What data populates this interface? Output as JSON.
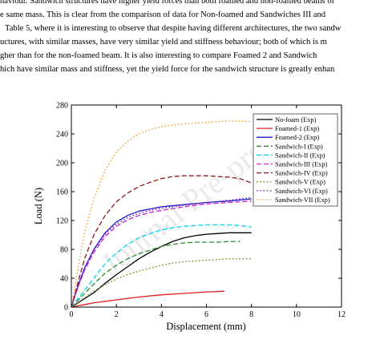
{
  "paragraph": {
    "lines": [
      "haviour. Sandwich structures have higher yield forces than both foamed and non-foamed beams of",
      "e same mass. This is clear from the comparison of data for Non-foamed and Sandwiches III and",
      "Table 5, where it is interesting to observe that despite having different architectures, the two sandw",
      "uctures, with similar masses, have very similar yield and stiffness behaviour; both of which is m",
      "gher than for the non-foamed beam. It is also interesting to compare Foamed 2 and Sandwich",
      "hich have similar mass and stiffness, yet the yield force for the sandwich structure is greatly enhan"
    ]
  },
  "watermark": "Journal Pre-proof",
  "chart_data": {
    "type": "line",
    "xlabel": "Displacement (mm)",
    "ylabel": "Load (N)",
    "xlim": [
      0,
      12
    ],
    "ylim": [
      0,
      280
    ],
    "xticks": [
      0,
      2,
      4,
      6,
      8,
      10,
      12
    ],
    "yticks": [
      0,
      40,
      80,
      120,
      160,
      200,
      240,
      280
    ],
    "grid": false,
    "legend_position": "top-right",
    "series": [
      {
        "name": "No-foam (Exp)",
        "color": "#000000",
        "style": "solid",
        "x": [
          0,
          0.5,
          1,
          1.5,
          2,
          2.5,
          3,
          3.5,
          4,
          4.5,
          5,
          5.5,
          6,
          6.5,
          7,
          7.5,
          8
        ],
        "y": [
          0,
          10,
          20,
          33,
          45,
          56,
          67,
          76,
          84,
          91,
          96,
          99,
          101,
          102,
          103,
          103,
          103
        ]
      },
      {
        "name": "Foamed-1 (Exp)",
        "color": "#e02020",
        "style": "solid",
        "x": [
          0,
          0.5,
          1,
          1.5,
          2,
          3,
          4,
          5,
          6,
          6.8
        ],
        "y": [
          0,
          3,
          6,
          8,
          10,
          14,
          17,
          19,
          21,
          22
        ]
      },
      {
        "name": "Foamed-2 (Exp)",
        "color": "#1a1acc",
        "style": "solid",
        "x": [
          0,
          0.3,
          0.6,
          1,
          1.5,
          2,
          2.5,
          3,
          3.5,
          4,
          5,
          6,
          7,
          8
        ],
        "y": [
          0,
          30,
          55,
          80,
          103,
          118,
          127,
          133,
          136,
          139,
          142,
          145,
          147,
          150
        ]
      },
      {
        "name": "Sandwich-I (Exp)",
        "color": "#2e8b2e",
        "style": "dashed",
        "x": [
          0,
          0.5,
          1,
          1.5,
          2,
          2.5,
          3,
          3.5,
          4,
          4.5,
          5,
          5.5,
          6,
          6.5,
          7,
          7.5
        ],
        "y": [
          0,
          16,
          32,
          47,
          58,
          67,
          74,
          79,
          84,
          87,
          89,
          90,
          90,
          90,
          91,
          91
        ]
      },
      {
        "name": "Sandwich-II (Exp)",
        "color": "#00d4e8",
        "style": "dashed",
        "x": [
          0,
          0.5,
          1,
          1.5,
          2,
          2.5,
          3,
          3.5,
          4,
          4.5,
          5,
          5.5,
          6,
          6.5,
          7,
          7.5,
          8
        ],
        "y": [
          0,
          20,
          40,
          60,
          75,
          87,
          96,
          102,
          107,
          110,
          112,
          113,
          114,
          114,
          114,
          113,
          111
        ]
      },
      {
        "name": "Sandwich-III (Exp)",
        "color": "#cc22cc",
        "style": "dashed",
        "x": [
          0,
          0.3,
          0.6,
          1,
          1.5,
          2,
          2.5,
          3,
          3.5,
          4,
          5,
          6,
          7,
          8
        ],
        "y": [
          0,
          28,
          52,
          76,
          98,
          112,
          121,
          127,
          131,
          134,
          139,
          143,
          145,
          147
        ]
      },
      {
        "name": "Sandwich-IV (Exp)",
        "color": "#8b1a1a",
        "style": "dashed",
        "x": [
          0,
          0.3,
          0.6,
          1,
          1.5,
          2,
          2.5,
          3,
          3.5,
          4,
          4.5,
          5,
          5.5,
          6,
          6.5,
          7,
          7.5,
          8
        ],
        "y": [
          0,
          35,
          68,
          100,
          127,
          146,
          158,
          167,
          173,
          178,
          181,
          182,
          182,
          182,
          181,
          180,
          178,
          172
        ]
      },
      {
        "name": "Sandwich-V (Exp)",
        "color": "#6b8e23",
        "style": "dotted",
        "x": [
          0,
          0.5,
          1,
          1.5,
          2,
          2.5,
          3,
          3.5,
          4,
          4.5,
          5,
          5.5,
          6,
          6.5,
          7,
          7.5,
          8
        ],
        "y": [
          0,
          11,
          22,
          31,
          39,
          45,
          50,
          54,
          58,
          61,
          63,
          64,
          65,
          66,
          67,
          67,
          67
        ]
      },
      {
        "name": "Sandwich-VI (Exp)",
        "color": "#8822bb",
        "style": "dotted",
        "x": [
          0,
          0.3,
          0.6,
          1,
          1.5,
          2,
          2.5,
          3,
          3.5,
          4,
          5,
          6,
          7,
          8
        ],
        "y": [
          0,
          29,
          54,
          79,
          101,
          115,
          124,
          130,
          134,
          137,
          141,
          145,
          148,
          152
        ]
      },
      {
        "name": "Sandwich-VII (Exp)",
        "color": "#f0a030",
        "style": "dotted",
        "x": [
          0,
          0.3,
          0.6,
          1,
          1.5,
          2,
          2.5,
          3,
          3.5,
          4,
          4.5,
          5,
          5.5,
          6,
          7,
          8
        ],
        "y": [
          0,
          55,
          105,
          150,
          190,
          215,
          230,
          240,
          246,
          250,
          252,
          254,
          255,
          256,
          258,
          257
        ]
      }
    ]
  }
}
